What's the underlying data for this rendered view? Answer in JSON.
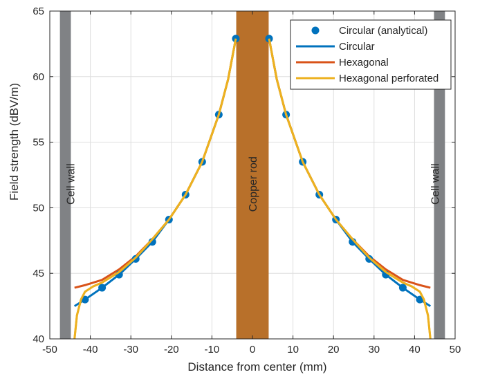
{
  "chart_data": {
    "type": "line",
    "title": "",
    "xlabel": "Distance from center (mm)",
    "ylabel": "Field strength (dBV/m)",
    "xlim": [
      -50,
      50
    ],
    "ylim": [
      40,
      65
    ],
    "xticks": [
      -50,
      -40,
      -30,
      -20,
      -10,
      0,
      10,
      20,
      30,
      40,
      50
    ],
    "yticks": [
      40,
      45,
      50,
      55,
      60,
      65
    ],
    "grid": true,
    "legend_position": "top-right",
    "regions": [
      {
        "name": "Cell wall",
        "x0": -47.5,
        "x1": -44.8,
        "color": "#808285",
        "label_x": -45.0
      },
      {
        "name": "Copper rod",
        "x0": -4.0,
        "x1": 4.0,
        "color": "#b8702a",
        "label_x": 0
      },
      {
        "name": "Cell wall",
        "x0": 44.8,
        "x1": 47.5,
        "color": "#808285",
        "label_x": 45.0
      }
    ],
    "series": [
      {
        "name": "Circular (analytical)",
        "style": "markers",
        "color": "#0072bd",
        "x": [
          -41.3,
          -37.1,
          -32.9,
          -28.8,
          -24.7,
          -20.6,
          -16.5,
          -12.4,
          -8.3,
          4.1,
          8.3,
          12.4,
          16.5,
          20.6,
          24.7,
          28.8,
          32.9,
          37.1,
          41.3
        ],
        "y": [
          43.0,
          43.9,
          44.9,
          46.1,
          47.4,
          49.1,
          51.0,
          53.5,
          57.1,
          62.9,
          57.1,
          53.5,
          51.0,
          49.1,
          47.4,
          46.1,
          44.9,
          43.9,
          43.0
        ],
        "extra_points": [
          {
            "x": -4.1,
            "y": 62.9
          }
        ]
      },
      {
        "name": "Circular",
        "style": "line",
        "color": "#0072bd",
        "x": [
          -43.9,
          -41.3,
          -37.1,
          -32.9,
          -28.8,
          -24.7,
          -20.6,
          -16.5,
          -12.4,
          -8.3,
          -6.0,
          -4.1,
          4.1,
          6.0,
          8.3,
          12.4,
          16.5,
          20.6,
          24.7,
          28.8,
          32.9,
          37.1,
          41.3,
          43.9
        ],
        "y": [
          42.5,
          43.0,
          43.9,
          44.9,
          46.1,
          47.4,
          49.1,
          51.0,
          53.5,
          57.1,
          59.8,
          62.9,
          62.9,
          59.8,
          57.1,
          53.5,
          51.0,
          49.1,
          47.4,
          46.1,
          44.9,
          43.9,
          43.0,
          42.5
        ]
      },
      {
        "name": "Hexagonal",
        "style": "line",
        "color": "#d95319",
        "x": [
          -43.9,
          -41.3,
          -37.1,
          -32.9,
          -28.8,
          -24.7,
          -20.6,
          -16.5,
          -12.4,
          -8.3,
          -6.0,
          -4.1,
          4.1,
          6.0,
          8.3,
          12.4,
          16.5,
          20.6,
          24.7,
          28.8,
          32.9,
          37.1,
          41.3,
          43.9
        ],
        "y": [
          43.9,
          44.1,
          44.5,
          45.3,
          46.3,
          47.6,
          49.1,
          51.0,
          53.5,
          57.1,
          59.8,
          62.9,
          62.9,
          59.8,
          57.1,
          53.5,
          51.0,
          49.1,
          47.6,
          46.3,
          45.3,
          44.5,
          44.1,
          43.9
        ]
      },
      {
        "name": "Hexagonal perforated",
        "style": "line",
        "color": "#edb120",
        "x": [
          -43.9,
          -43.3,
          -42.3,
          -41.3,
          -39.3,
          -37.1,
          -32.9,
          -28.8,
          -24.7,
          -20.6,
          -16.5,
          -12.4,
          -8.3,
          -6.0,
          -4.1,
          4.1,
          6.0,
          8.3,
          12.4,
          16.5,
          20.6,
          24.7,
          28.8,
          32.9,
          37.1,
          39.3,
          41.3,
          42.3,
          43.3,
          43.9
        ],
        "y": [
          40.0,
          41.8,
          43.0,
          43.6,
          44.0,
          44.3,
          45.1,
          46.2,
          47.6,
          49.1,
          51.0,
          53.5,
          57.1,
          59.8,
          62.9,
          62.9,
          59.8,
          57.1,
          53.5,
          51.0,
          49.1,
          47.6,
          46.2,
          45.1,
          44.3,
          44.0,
          43.6,
          43.0,
          41.8,
          40.0
        ]
      }
    ]
  }
}
